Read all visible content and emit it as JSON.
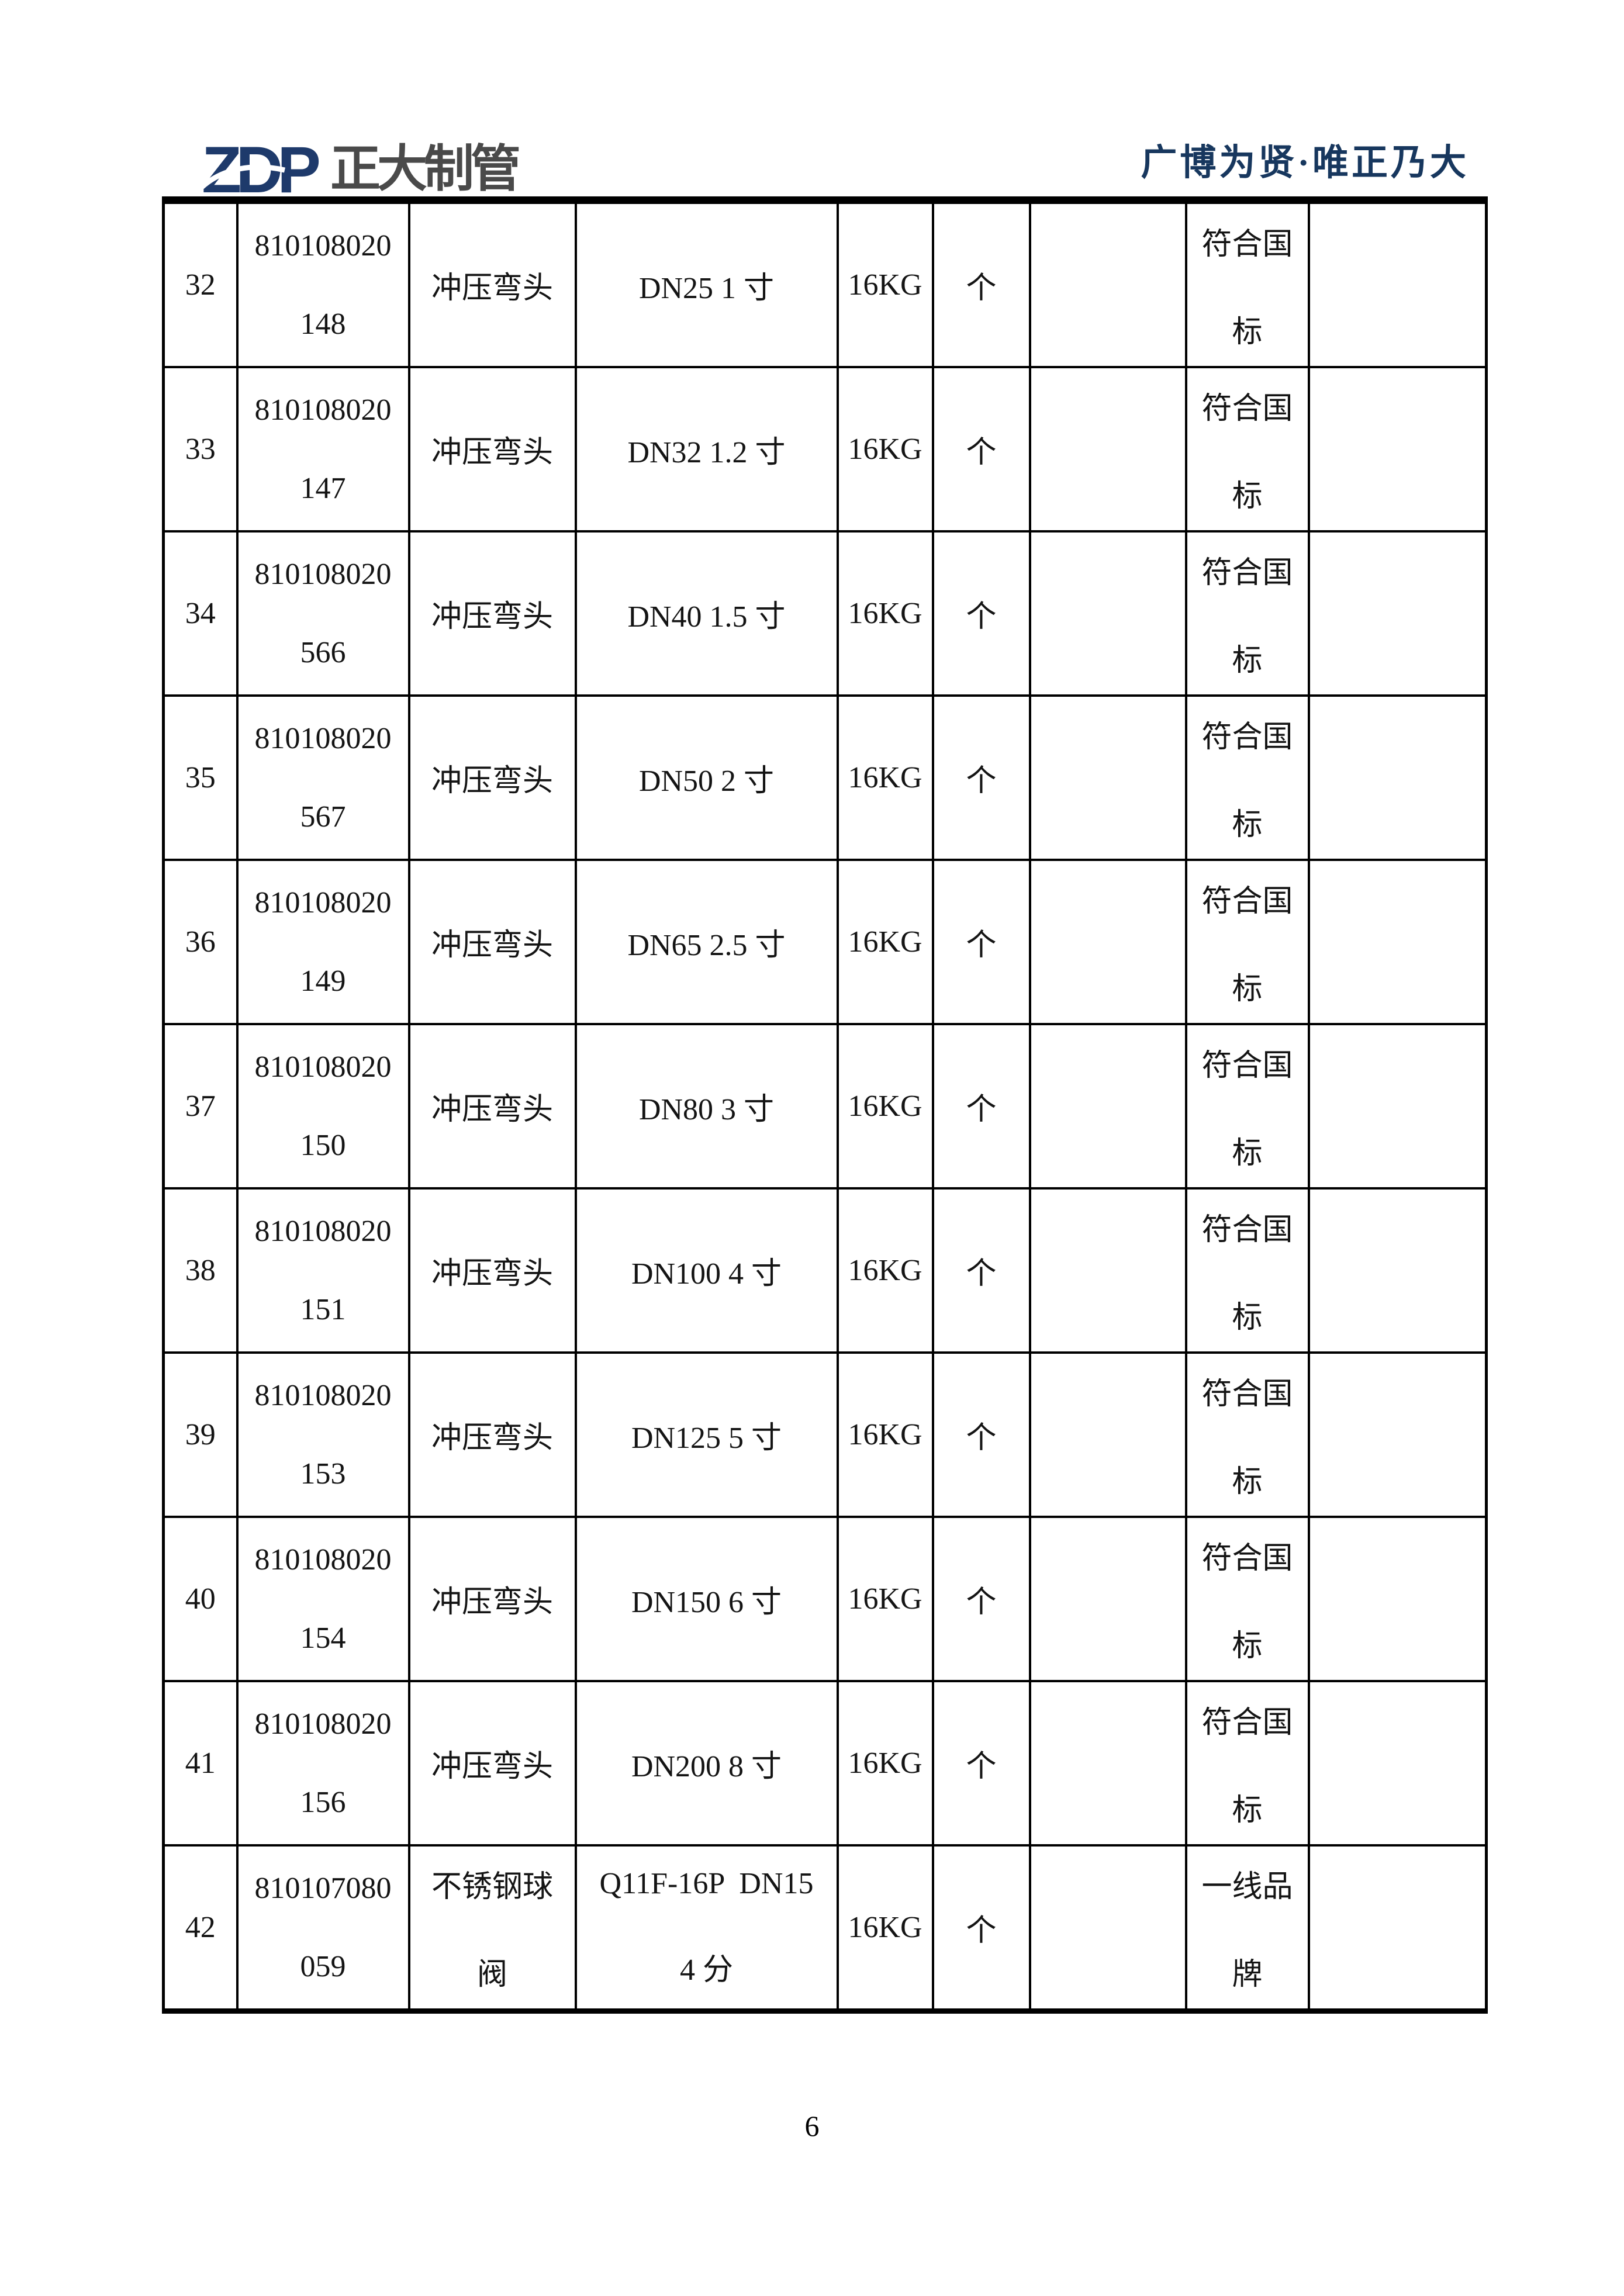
{
  "header": {
    "logo_text": "ZDP",
    "logo_company": "正大制管",
    "tagline": "广博为贤·唯正乃大"
  },
  "colors": {
    "brand_navy": "#1e3a6b",
    "logo_gray": "#4a4a4a",
    "tagline_navy": "#17375e",
    "table_border": "#000000"
  },
  "table": {
    "rows": [
      {
        "no": "32",
        "code": [
          "810108020",
          "148"
        ],
        "name": [
          "冲压弯头"
        ],
        "spec": [
          "DN25 1 寸"
        ],
        "pressure": "16KG",
        "unit": "个",
        "blank_a": "",
        "standard": [
          "符合国",
          "标"
        ],
        "blank_b": ""
      },
      {
        "no": "33",
        "code": [
          "810108020",
          "147"
        ],
        "name": [
          "冲压弯头"
        ],
        "spec": [
          "DN32 1.2 寸"
        ],
        "pressure": "16KG",
        "unit": "个",
        "blank_a": "",
        "standard": [
          "符合国",
          "标"
        ],
        "blank_b": ""
      },
      {
        "no": "34",
        "code": [
          "810108020",
          "566"
        ],
        "name": [
          "冲压弯头"
        ],
        "spec": [
          "DN40 1.5 寸"
        ],
        "pressure": "16KG",
        "unit": "个",
        "blank_a": "",
        "standard": [
          "符合国",
          "标"
        ],
        "blank_b": ""
      },
      {
        "no": "35",
        "code": [
          "810108020",
          "567"
        ],
        "name": [
          "冲压弯头"
        ],
        "spec": [
          "DN50 2 寸"
        ],
        "pressure": "16KG",
        "unit": "个",
        "blank_a": "",
        "standard": [
          "符合国",
          "标"
        ],
        "blank_b": ""
      },
      {
        "no": "36",
        "code": [
          "810108020",
          "149"
        ],
        "name": [
          "冲压弯头"
        ],
        "spec": [
          "DN65 2.5 寸"
        ],
        "pressure": "16KG",
        "unit": "个",
        "blank_a": "",
        "standard": [
          "符合国",
          "标"
        ],
        "blank_b": ""
      },
      {
        "no": "37",
        "code": [
          "810108020",
          "150"
        ],
        "name": [
          "冲压弯头"
        ],
        "spec": [
          "DN80 3 寸"
        ],
        "pressure": "16KG",
        "unit": "个",
        "blank_a": "",
        "standard": [
          "符合国",
          "标"
        ],
        "blank_b": ""
      },
      {
        "no": "38",
        "code": [
          "810108020",
          "151"
        ],
        "name": [
          "冲压弯头"
        ],
        "spec": [
          "DN100 4 寸"
        ],
        "pressure": "16KG",
        "unit": "个",
        "blank_a": "",
        "standard": [
          "符合国",
          "标"
        ],
        "blank_b": ""
      },
      {
        "no": "39",
        "code": [
          "810108020",
          "153"
        ],
        "name": [
          "冲压弯头"
        ],
        "spec": [
          "DN125 5 寸"
        ],
        "pressure": "16KG",
        "unit": "个",
        "blank_a": "",
        "standard": [
          "符合国",
          "标"
        ],
        "blank_b": ""
      },
      {
        "no": "40",
        "code": [
          "810108020",
          "154"
        ],
        "name": [
          "冲压弯头"
        ],
        "spec": [
          "DN150 6 寸"
        ],
        "pressure": "16KG",
        "unit": "个",
        "blank_a": "",
        "standard": [
          "符合国",
          "标"
        ],
        "blank_b": ""
      },
      {
        "no": "41",
        "code": [
          "810108020",
          "156"
        ],
        "name": [
          "冲压弯头"
        ],
        "spec": [
          "DN200 8 寸"
        ],
        "pressure": "16KG",
        "unit": "个",
        "blank_a": "",
        "standard": [
          "符合国",
          "标"
        ],
        "blank_b": ""
      },
      {
        "no": "42",
        "code": [
          "810107080",
          "059"
        ],
        "name": [
          "不锈钢球",
          "阀"
        ],
        "spec": [
          "Q11F-16P  DN15",
          "4 分"
        ],
        "pressure": "16KG",
        "unit": "个",
        "blank_a": "",
        "standard": [
          "一线品",
          "牌"
        ],
        "blank_b": ""
      }
    ]
  },
  "footer": {
    "page_number": "6"
  }
}
